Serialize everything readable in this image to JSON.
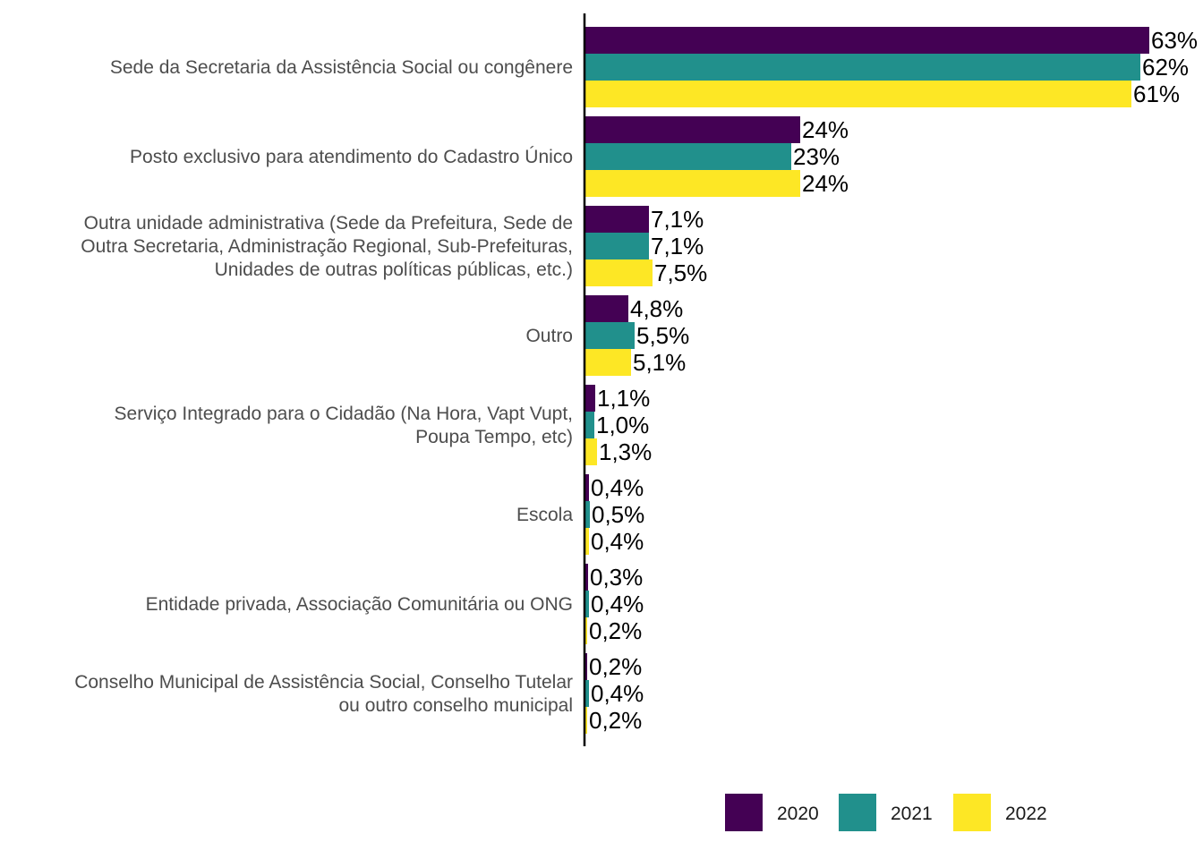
{
  "chart_data": {
    "type": "bar",
    "orientation": "horizontal",
    "categories": [
      [
        "Sede da Secretaria da Assistência Social ou congênere"
      ],
      [
        "Posto exclusivo para atendimento do Cadastro Único"
      ],
      [
        "Outra unidade administrativa (Sede da Prefeitura, Sede de",
        "Outra Secretaria, Administração Regional, Sub-Prefeituras,",
        "Unidades de outras políticas públicas, etc.)"
      ],
      [
        "Outro"
      ],
      [
        "Serviço Integrado para o Cidadão (Na Hora, Vapt Vupt,",
        "Poupa Tempo, etc)"
      ],
      [
        "Escola"
      ],
      [
        "Entidade privada, Associação Comunitária ou ONG"
      ],
      [
        "Conselho Municipal de Assistência Social, Conselho Tutelar",
        "ou outro conselho municipal"
      ]
    ],
    "series": [
      {
        "name": "2020",
        "color": "#440154",
        "values": [
          63,
          24,
          7.1,
          4.8,
          1.1,
          0.4,
          0.3,
          0.2
        ],
        "labels": [
          "63%",
          "24%",
          "7,1%",
          "4,8%",
          "1,1%",
          "0,4%",
          "0,3%",
          "0,2%"
        ]
      },
      {
        "name": "2021",
        "color": "#21908C",
        "values": [
          62,
          23,
          7.1,
          5.5,
          1.0,
          0.5,
          0.4,
          0.4
        ],
        "labels": [
          "62%",
          "23%",
          "7,1%",
          "5,5%",
          "1,0%",
          "0,5%",
          "0,4%",
          "0,4%"
        ]
      },
      {
        "name": "2022",
        "color": "#FDE725",
        "values": [
          61,
          24,
          7.5,
          5.1,
          1.3,
          0.4,
          0.2,
          0.2
        ],
        "labels": [
          "61%",
          "24%",
          "7,5%",
          "5,1%",
          "1,3%",
          "0,4%",
          "0,2%",
          "0,2%"
        ]
      }
    ],
    "xlim": [
      0,
      66
    ],
    "grid": false,
    "legend_position": "bottom-right"
  }
}
